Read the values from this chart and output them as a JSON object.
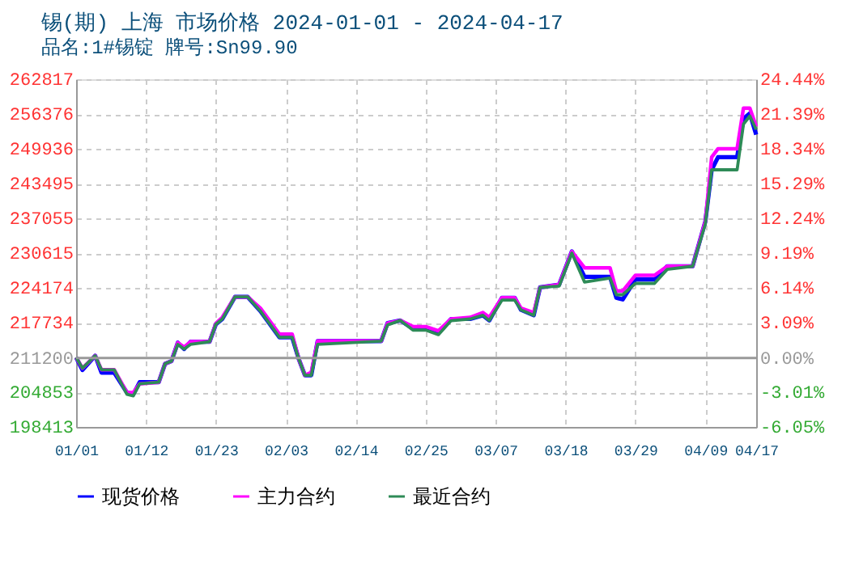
{
  "chart_data": {
    "type": "line",
    "title": "锡(期) 上海 市场价格 2024-01-01 - 2024-04-17",
    "subtitle": "品名:1#锡锭 牌号:Sn99.90",
    "x": [
      "2024-01-01",
      "2024-01-02",
      "2024-01-04",
      "2024-01-05",
      "2024-01-07",
      "2024-01-09",
      "2024-01-10",
      "2024-01-11",
      "2024-01-14",
      "2024-01-15",
      "2024-01-16",
      "2024-01-17",
      "2024-01-18",
      "2024-01-19",
      "2024-01-22",
      "2024-01-23",
      "2024-01-24",
      "2024-01-26",
      "2024-01-28",
      "2024-01-30",
      "2024-02-02",
      "2024-02-04",
      "2024-02-05",
      "2024-02-06",
      "2024-02-07",
      "2024-02-08",
      "2024-02-18",
      "2024-02-19",
      "2024-02-21",
      "2024-02-23",
      "2024-02-25",
      "2024-02-27",
      "2024-02-29",
      "2024-03-03",
      "2024-03-05",
      "2024-03-06",
      "2024-03-08",
      "2024-03-10",
      "2024-03-11",
      "2024-03-13",
      "2024-03-14",
      "2024-03-17",
      "2024-03-19",
      "2024-03-21",
      "2024-03-25",
      "2024-03-26",
      "2024-03-27",
      "2024-03-29",
      "2024-04-01",
      "2024-04-03",
      "2024-04-07",
      "2024-04-09",
      "2024-04-10",
      "2024-04-11",
      "2024-04-14",
      "2024-04-15",
      "2024-04-16",
      "2024-04-17"
    ],
    "series": [
      {
        "name": "现货价格",
        "color": "#0000ff",
        "values": [
          211290,
          208950,
          211600,
          208460,
          208460,
          204760,
          204460,
          206700,
          206700,
          210120,
          210600,
          214020,
          212850,
          214200,
          214200,
          217440,
          218410,
          222500,
          222500,
          219870,
          215010,
          215010,
          211090,
          207990,
          207990,
          214310,
          214310,
          217640,
          218130,
          216650,
          216650,
          215780,
          218410,
          218410,
          219100,
          218130,
          222330,
          222330,
          220100,
          219100,
          224270,
          224770,
          230910,
          226220,
          226220,
          222330,
          222030,
          225720,
          225720,
          228180,
          228180,
          236470,
          246040,
          248380,
          248380,
          255500,
          256470,
          252570
        ]
      },
      {
        "name": "主力合约",
        "color": "#ff00ff",
        "values": [
          211290,
          209300,
          211600,
          209000,
          209000,
          204760,
          204760,
          206400,
          206700,
          210120,
          210600,
          214020,
          213200,
          214200,
          214200,
          217600,
          218700,
          222500,
          222500,
          220400,
          215600,
          215600,
          211090,
          207990,
          208500,
          214310,
          214310,
          217640,
          218130,
          217000,
          217000,
          216200,
          218410,
          218700,
          219600,
          218700,
          222330,
          222330,
          220400,
          219600,
          224270,
          224770,
          230910,
          227890,
          227890,
          223600,
          223600,
          226500,
          226500,
          228180,
          228180,
          236470,
          248380,
          249940,
          249940,
          257460,
          257460,
          254040
        ]
      },
      {
        "name": "最近合约",
        "color": "#2e8b57",
        "values": [
          211290,
          209300,
          211600,
          209000,
          209000,
          204460,
          204170,
          206400,
          206700,
          210120,
          210600,
          213700,
          212850,
          213700,
          214200,
          217440,
          218410,
          222500,
          222500,
          219870,
          215010,
          215010,
          211090,
          207990,
          207990,
          213700,
          214310,
          217300,
          218130,
          216350,
          216350,
          215500,
          218100,
          218410,
          219100,
          218130,
          221900,
          221900,
          220100,
          219100,
          224270,
          224500,
          230610,
          225240,
          226000,
          222900,
          222900,
          225000,
          225000,
          227600,
          228180,
          236000,
          246040,
          246040,
          246040,
          254500,
          256000,
          253500
        ]
      }
    ],
    "ylim": [
      198413,
      262817
    ],
    "yticks": [
      198413,
      204853,
      211200,
      217734,
      224174,
      230615,
      237055,
      243495,
      249936,
      256376,
      262817
    ],
    "y2lim": [
      -6.05,
      24.44
    ],
    "y2ticks": [
      {
        "value": -6.05,
        "label": "-6.05%"
      },
      {
        "value": -3.01,
        "label": "-3.01%"
      },
      {
        "value": 0,
        "label": "0.00%"
      },
      {
        "value": 3.09,
        "label": "3.09%"
      },
      {
        "value": 6.14,
        "label": "6.14%"
      },
      {
        "value": 9.19,
        "label": "9.19%"
      },
      {
        "value": 12.24,
        "label": "12.24%"
      },
      {
        "value": 15.29,
        "label": "15.29%"
      },
      {
        "value": 18.34,
        "label": "18.34%"
      },
      {
        "value": 21.39,
        "label": "21.39%"
      },
      {
        "value": 24.44,
        "label": "24.44%"
      }
    ],
    "xlim": [
      "2024-01-01",
      "2024-04-17"
    ],
    "xticks": [
      {
        "value": "2024-01-01",
        "label": "01/01"
      },
      {
        "value": "2024-01-12",
        "label": "01/12"
      },
      {
        "value": "2024-01-23",
        "label": "01/23"
      },
      {
        "value": "2024-02-03",
        "label": "02/03"
      },
      {
        "value": "2024-02-14",
        "label": "02/14"
      },
      {
        "value": "2024-02-25",
        "label": "02/25"
      },
      {
        "value": "2024-03-07",
        "label": "03/07"
      },
      {
        "value": "2024-03-18",
        "label": "03/18"
      },
      {
        "value": "2024-03-29",
        "label": "03/29"
      },
      {
        "value": "2024-04-09",
        "label": "04/09"
      },
      {
        "value": "2024-04-17",
        "label": "04/17"
      }
    ],
    "ref_lines": [
      {
        "axis": "y",
        "value": 211200,
        "color": "#999999"
      }
    ],
    "grid": true,
    "legend": "bottom",
    "marker": "none",
    "line_style": "solid"
  }
}
